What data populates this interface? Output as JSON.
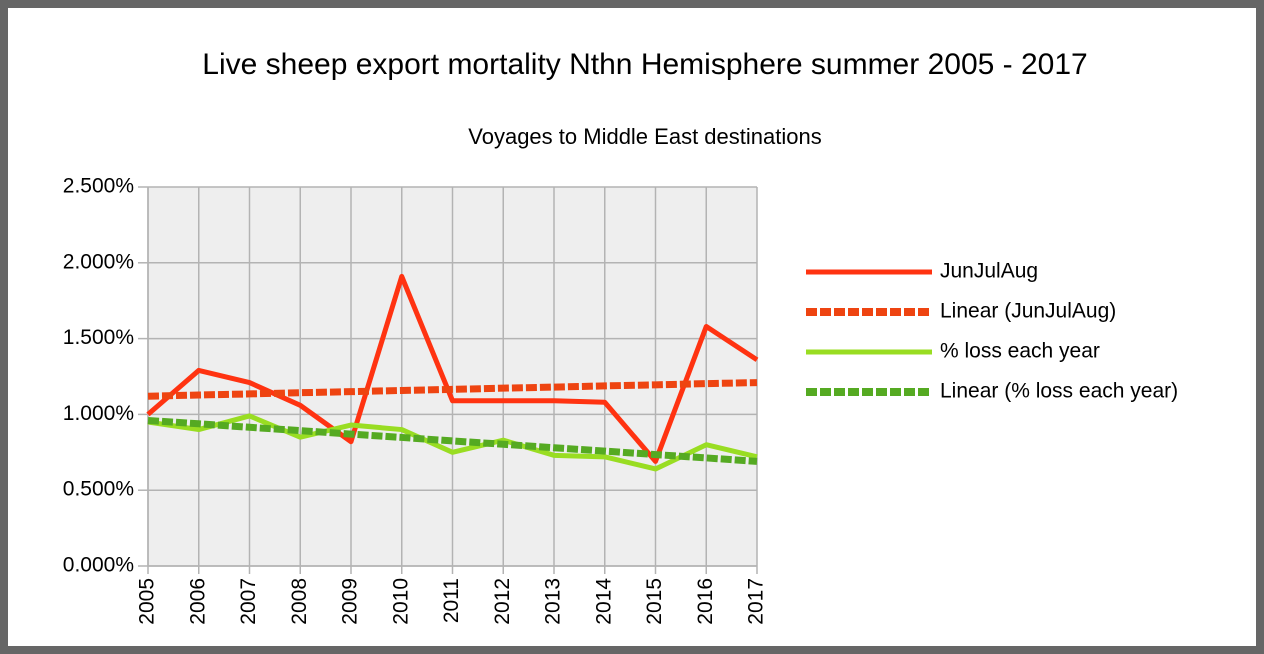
{
  "chart_data": {
    "type": "line",
    "title": "Live sheep export mortality Nthn Hemisphere summer 2005 - 2017",
    "subtitle": "Voyages to Middle East destinations",
    "x": [
      2005,
      2006,
      2007,
      2008,
      2009,
      2010,
      2011,
      2012,
      2013,
      2014,
      2015,
      2016,
      2017
    ],
    "xlim": [
      2005,
      2017
    ],
    "xticks": [
      2005,
      2006,
      2007,
      2008,
      2009,
      2010,
      2011,
      2012,
      2013,
      2014,
      2015,
      2016,
      2017
    ],
    "ylim": [
      0,
      2.5
    ],
    "yticks": [
      {
        "value": 0,
        "label": "0.000%"
      },
      {
        "value": 0.5,
        "label": "0.500%"
      },
      {
        "value": 1,
        "label": "1.000%"
      },
      {
        "value": 1.5,
        "label": "1.500%"
      },
      {
        "value": 2,
        "label": "2.000%"
      },
      {
        "value": 2.5,
        "label": "2.500%"
      }
    ],
    "grid": true,
    "legend": "right",
    "series": [
      {
        "name": "JunJulAug",
        "color": "#ff3311",
        "dashed": false,
        "values": [
          1.0,
          1.29,
          1.21,
          1.06,
          0.82,
          1.91,
          1.09,
          1.09,
          1.09,
          1.08,
          0.69,
          1.58,
          1.36
        ]
      },
      {
        "name": "Linear (JunJulAug)",
        "color": "#ee4411",
        "dashed": true,
        "values": [
          1.12,
          1.128,
          1.135,
          1.143,
          1.15,
          1.158,
          1.165,
          1.173,
          1.18,
          1.188,
          1.195,
          1.203,
          1.21
        ]
      },
      {
        "name": "% loss each year",
        "color": "#99dd22",
        "dashed": false,
        "values": [
          0.95,
          0.9,
          0.99,
          0.85,
          0.93,
          0.9,
          0.75,
          0.83,
          0.73,
          0.72,
          0.64,
          0.8,
          0.72
        ]
      },
      {
        "name": "Linear (% loss each year)",
        "color": "#55aa22",
        "dashed": true,
        "values": [
          0.96,
          0.938,
          0.915,
          0.893,
          0.87,
          0.848,
          0.825,
          0.803,
          0.78,
          0.758,
          0.735,
          0.713,
          0.69
        ]
      }
    ]
  }
}
